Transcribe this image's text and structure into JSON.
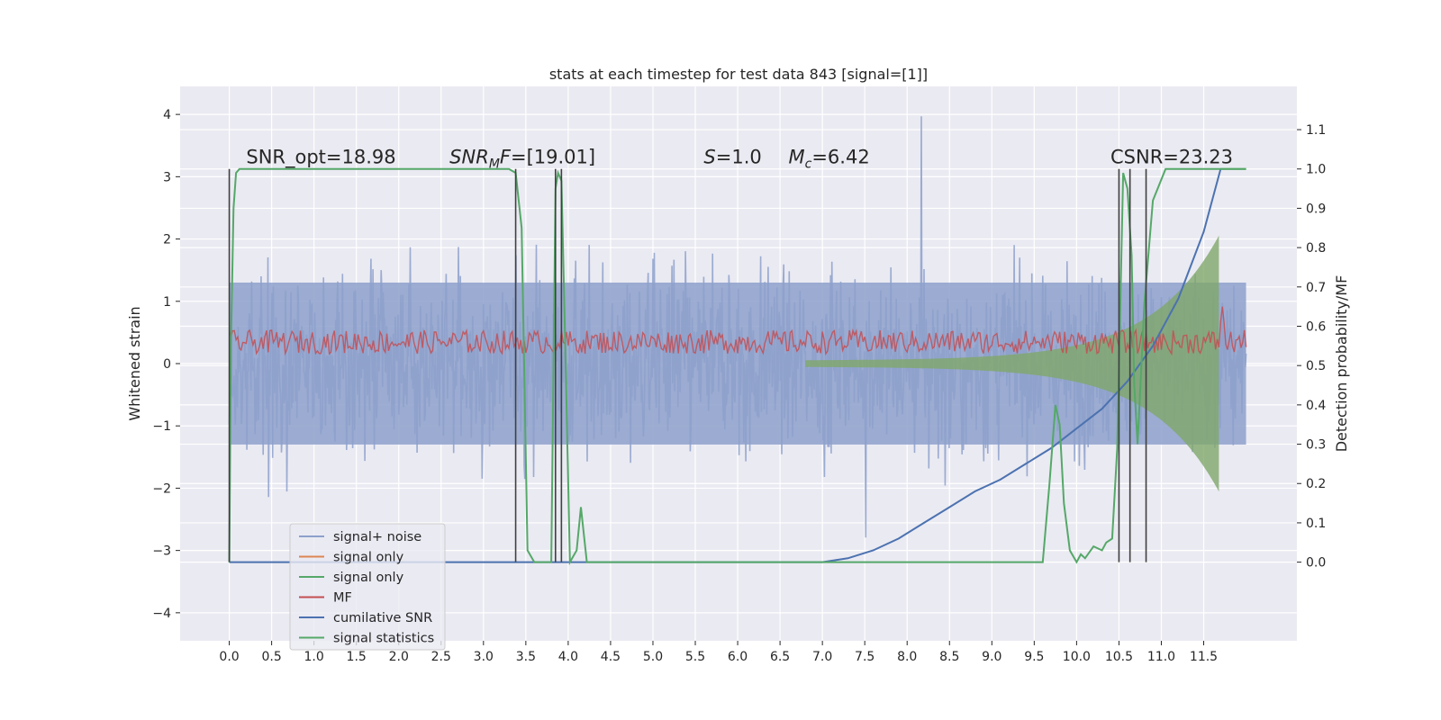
{
  "chart_data": {
    "type": "line",
    "title": "stats at each timestep for test data 843 [signal=[1]]",
    "xlabel": "",
    "ylabel": "Whitened strain",
    "ylabel_right": "Detection probability/MF",
    "xlim": [
      -0.58,
      12.6
    ],
    "ylim": [
      -4.45,
      4.45
    ],
    "ylim_right": [
      -0.2,
      1.21
    ],
    "x_ticks": [
      "0.0",
      "0.5",
      "1.0",
      "1.5",
      "2.0",
      "2.5",
      "3.0",
      "3.5",
      "4.0",
      "4.5",
      "5.0",
      "5.5",
      "6.0",
      "6.5",
      "7.0",
      "7.5",
      "8.0",
      "8.5",
      "9.0",
      "9.5",
      "10.0",
      "10.5",
      "11.0",
      "11.5"
    ],
    "y_ticks_left": [
      "4",
      "3",
      "2",
      "1",
      "0",
      "−1",
      "−2",
      "−3",
      "−4"
    ],
    "y_ticks_right": [
      "1.1",
      "1.0",
      "0.9",
      "0.8",
      "0.7",
      "0.6",
      "0.5",
      "0.4",
      "0.3",
      "0.2",
      "0.1",
      "0.0"
    ],
    "grid": true,
    "legend_position": "lower-left",
    "annotations": [
      {
        "text": "SNR_opt=18.98",
        "x": 0.2,
        "y": 1.0
      },
      {
        "text": "SNR_MF=[19.01]",
        "x": 2.6,
        "y": 1.0
      },
      {
        "text": "S=1.0",
        "x": 5.6,
        "y": 1.0
      },
      {
        "text": "M_c=6.42",
        "x": 6.6,
        "y": 1.0
      },
      {
        "text": "CSNR=23.23",
        "x": 10.4,
        "y": 1.0
      }
    ],
    "legend": [
      {
        "label": "signal+ noise",
        "color": "#8da0cb"
      },
      {
        "label": "signal only",
        "color": "#dd8452"
      },
      {
        "label": "signal only",
        "color": "#55a868"
      },
      {
        "label": "MF",
        "color": "#c44e52"
      },
      {
        "label": "cumilative SNR",
        "color": "#4c72b0"
      },
      {
        "label": "signal statistics",
        "color": "#55a868"
      }
    ],
    "colors": {
      "background": "#eaeaf2",
      "grid": "#ffffff",
      "noise": "#8da0cb",
      "signal": "#7fa86a",
      "mf": "#c44e52",
      "csnr": "#4c72b0",
      "stats": "#55a868",
      "vlines": "#404040"
    },
    "series": [
      {
        "name": "cumilative SNR",
        "axis": "right",
        "x": [
          0.0,
          7.0,
          7.3,
          7.6,
          7.9,
          8.2,
          8.5,
          8.8,
          9.1,
          9.4,
          9.7,
          10.0,
          10.3,
          10.6,
          10.9,
          11.2,
          11.5,
          11.7
        ],
        "y": [
          0.0,
          0.0,
          0.01,
          0.03,
          0.06,
          0.1,
          0.14,
          0.18,
          0.21,
          0.25,
          0.29,
          0.34,
          0.39,
          0.46,
          0.55,
          0.67,
          0.84,
          1.0
        ]
      },
      {
        "name": "signal statistics",
        "axis": "right",
        "x": [
          0.0,
          0.02,
          0.05,
          0.08,
          0.12,
          0.2,
          0.3,
          3.3,
          3.38,
          3.45,
          3.52,
          3.6,
          3.8,
          3.85,
          3.88,
          3.92,
          3.97,
          4.02,
          4.1,
          4.15,
          4.22,
          4.28,
          9.6,
          9.68,
          9.75,
          9.8,
          9.85,
          9.92,
          10.0,
          10.05,
          10.1,
          10.2,
          10.3,
          10.35,
          10.42,
          10.48,
          10.55,
          10.6,
          10.65,
          10.68,
          10.72,
          10.8,
          10.9,
          11.05,
          11.6,
          11.7,
          12.0
        ],
        "y": [
          0.0,
          0.55,
          0.9,
          0.99,
          1.0,
          1.0,
          1.0,
          1.0,
          0.99,
          0.85,
          0.03,
          0.0,
          0.0,
          0.95,
          0.99,
          0.97,
          0.5,
          0.0,
          0.03,
          0.14,
          0.0,
          0.0,
          0.0,
          0.2,
          0.4,
          0.35,
          0.15,
          0.03,
          0.0,
          0.02,
          0.01,
          0.04,
          0.03,
          0.05,
          0.06,
          0.29,
          0.99,
          0.95,
          0.78,
          0.45,
          0.3,
          0.66,
          0.92,
          1.0,
          1.0,
          1.0,
          1.0
        ]
      }
    ],
    "vertical_lines_x": [
      0.0,
      3.38,
      3.85,
      3.92,
      10.5,
      10.63,
      10.82
    ]
  }
}
